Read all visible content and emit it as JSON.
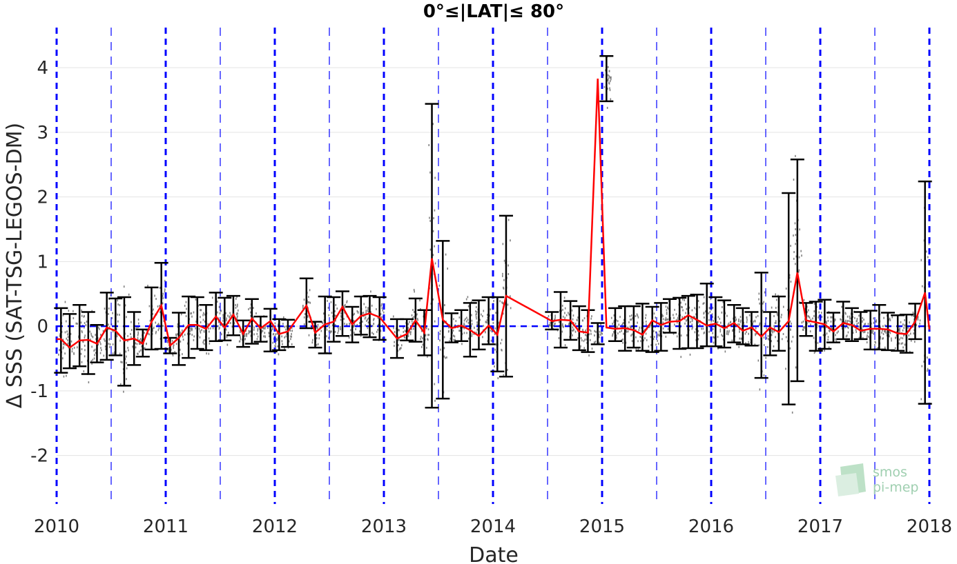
{
  "chart_data": {
    "type": "line",
    "title": "0°≤|LAT|≤ 80°",
    "xlabel": "Date",
    "ylabel": "Δ SSS (SAT-TSG-LEGOS-DM)",
    "xlim": [
      2010,
      2018
    ],
    "ylim": [
      -2.75,
      4.62
    ],
    "x_ticks": [
      "2010",
      "2011",
      "2012",
      "2013",
      "2014",
      "2015",
      "2016",
      "2017",
      "2018"
    ],
    "y_ticks": [
      "-2",
      "-1",
      "0",
      "1",
      "2",
      "3",
      "4"
    ],
    "grid": true,
    "reference_line_y": 0,
    "year_lines": [
      2010,
      2011,
      2012,
      2013,
      2014,
      2015,
      2016,
      2017,
      2018
    ],
    "half_year_lines": [
      2010.5,
      2011.5,
      2012.5,
      2013.5,
      2014.5,
      2015.5,
      2016.5,
      2017.5
    ],
    "series": [
      {
        "color": "#ff0000",
        "x": [
          2010.04,
          2010.12,
          2010.21,
          2010.29,
          2010.37,
          2010.46,
          2010.54,
          2010.62,
          2010.71,
          2010.79,
          2010.87,
          2010.96,
          2011.04,
          2011.12,
          2011.21,
          2011.29,
          2011.37,
          2011.46,
          2011.54,
          2011.62,
          2011.71,
          2011.79,
          2011.87,
          2011.96,
          2012.04,
          2012.12,
          2012.29,
          2012.37,
          2012.46,
          2012.54,
          2012.62,
          2012.71,
          2012.79,
          2012.87,
          2012.96,
          2013.12,
          2013.21,
          2013.29,
          2013.37,
          2013.44,
          2013.54,
          2013.62,
          2013.71,
          2013.79,
          2013.87,
          2013.96,
          2014.04,
          2014.12,
          2014.54,
          2014.62,
          2014.71,
          2014.79,
          2014.87,
          2014.96,
          2015.04,
          2015.12,
          2015.21,
          2015.29,
          2015.37,
          2015.46,
          2015.54,
          2015.62,
          2015.71,
          2015.79,
          2015.87,
          2015.96,
          2016.04,
          2016.12,
          2016.21,
          2016.29,
          2016.37,
          2016.46,
          2016.54,
          2016.62,
          2016.71,
          2016.79,
          2016.87,
          2016.96,
          2017.04,
          2017.12,
          2017.21,
          2017.29,
          2017.37,
          2017.46,
          2017.54,
          2017.62,
          2017.71,
          2017.79,
          2017.87,
          2017.96
        ],
        "y": [
          -0.2,
          -0.33,
          -0.22,
          -0.21,
          -0.27,
          -0.02,
          -0.07,
          -0.22,
          -0.19,
          -0.27,
          0.07,
          0.32,
          -0.3,
          -0.18,
          0.02,
          0.02,
          -0.04,
          0.15,
          -0.02,
          0.18,
          -0.12,
          0.12,
          -0.03,
          0.08,
          -0.12,
          -0.08,
          0.32,
          -0.1,
          0.03,
          0.07,
          0.3,
          0.03,
          0.16,
          0.2,
          0.14,
          -0.19,
          -0.12,
          0.09,
          -0.1,
          1.05,
          0.1,
          -0.03,
          0.01,
          -0.06,
          -0.15,
          0.01,
          -0.13,
          0.47,
          0.08,
          0.1,
          0.09,
          -0.08,
          -0.1,
          3.83,
          -0.02,
          -0.04,
          -0.03,
          -0.06,
          -0.13,
          0.09,
          0.02,
          0.07,
          0.08,
          0.17,
          0.1,
          0.01,
          0.04,
          -0.03,
          0.05,
          -0.07,
          -0.02,
          -0.16,
          -0.02,
          -0.09,
          0.08,
          0.83,
          0.09,
          0.06,
          0.03,
          -0.08,
          0.05,
          0.02,
          -0.07,
          -0.04,
          -0.04,
          -0.05,
          -0.11,
          -0.12,
          0.07,
          0.52
        ]
      }
    ],
    "error_bars": [
      [
        2010.04,
        -0.72,
        0.28
      ],
      [
        2010.12,
        -0.65,
        0.19
      ],
      [
        2010.21,
        -0.62,
        0.33
      ],
      [
        2010.29,
        -0.74,
        0.22
      ],
      [
        2010.37,
        -0.56,
        0.02
      ],
      [
        2010.46,
        -0.52,
        0.52
      ],
      [
        2010.54,
        -0.45,
        0.43
      ],
      [
        2010.62,
        -0.92,
        0.45
      ],
      [
        2010.71,
        -0.6,
        0.22
      ],
      [
        2010.79,
        -0.47,
        -0.05
      ],
      [
        2010.87,
        -0.36,
        0.6
      ],
      [
        2010.96,
        -0.35,
        0.98
      ],
      [
        2011.04,
        -0.42,
        -0.18
      ],
      [
        2011.12,
        -0.6,
        0.21
      ],
      [
        2011.21,
        -0.49,
        0.46
      ],
      [
        2011.29,
        -0.35,
        0.45
      ],
      [
        2011.37,
        -0.37,
        0.33
      ],
      [
        2011.46,
        -0.23,
        0.52
      ],
      [
        2011.54,
        -0.22,
        0.44
      ],
      [
        2011.62,
        -0.14,
        0.47
      ],
      [
        2011.71,
        -0.32,
        0.09
      ],
      [
        2011.79,
        -0.27,
        0.42
      ],
      [
        2011.87,
        -0.24,
        0.15
      ],
      [
        2011.96,
        -0.39,
        0.27
      ],
      [
        2012.04,
        -0.37,
        0.11
      ],
      [
        2012.12,
        -0.32,
        0.1
      ],
      [
        2012.29,
        -0.03,
        0.74
      ],
      [
        2012.37,
        -0.33,
        0.07
      ],
      [
        2012.46,
        -0.42,
        0.46
      ],
      [
        2012.54,
        -0.24,
        0.45
      ],
      [
        2012.62,
        -0.15,
        0.54
      ],
      [
        2012.71,
        -0.25,
        0.3
      ],
      [
        2012.79,
        -0.13,
        0.46
      ],
      [
        2012.87,
        -0.17,
        0.47
      ],
      [
        2012.96,
        -0.21,
        0.45
      ],
      [
        2013.12,
        -0.49,
        0.11
      ],
      [
        2013.21,
        -0.22,
        0.11
      ],
      [
        2013.29,
        -0.24,
        0.43
      ],
      [
        2013.37,
        -0.45,
        0.25
      ],
      [
        2013.44,
        -1.26,
        3.44
      ],
      [
        2013.54,
        -1.12,
        1.32
      ],
      [
        2013.62,
        -0.25,
        0.2
      ],
      [
        2013.71,
        -0.23,
        0.25
      ],
      [
        2013.79,
        -0.47,
        0.36
      ],
      [
        2013.87,
        -0.36,
        0.4
      ],
      [
        2013.96,
        -0.28,
        0.45
      ],
      [
        2014.04,
        -0.7,
        0.45
      ],
      [
        2014.12,
        -0.78,
        1.71
      ],
      [
        2014.54,
        -0.05,
        0.22
      ],
      [
        2014.62,
        -0.33,
        0.53
      ],
      [
        2014.71,
        -0.21,
        0.39
      ],
      [
        2014.79,
        -0.37,
        0.31
      ],
      [
        2014.87,
        -0.4,
        0.25
      ],
      [
        2014.96,
        -0.28,
        0.05
      ],
      [
        2015.04,
        3.48,
        4.18
      ],
      [
        2015.12,
        -0.23,
        0.28
      ],
      [
        2015.21,
        -0.38,
        0.31
      ],
      [
        2015.29,
        -0.33,
        0.31
      ],
      [
        2015.37,
        -0.38,
        0.35
      ],
      [
        2015.46,
        -0.4,
        0.3
      ],
      [
        2015.54,
        -0.38,
        0.36
      ],
      [
        2015.62,
        -0.1,
        0.42
      ],
      [
        2015.71,
        -0.35,
        0.44
      ],
      [
        2015.79,
        -0.34,
        0.47
      ],
      [
        2015.87,
        -0.34,
        0.49
      ],
      [
        2015.96,
        -0.31,
        0.66
      ],
      [
        2016.04,
        -0.31,
        0.45
      ],
      [
        2016.12,
        -0.33,
        0.4
      ],
      [
        2016.21,
        -0.25,
        0.33
      ],
      [
        2016.29,
        -0.28,
        0.28
      ],
      [
        2016.37,
        -0.3,
        0.22
      ],
      [
        2016.46,
        -0.8,
        0.83
      ],
      [
        2016.54,
        -0.45,
        0.22
      ],
      [
        2016.62,
        -0.38,
        0.46
      ],
      [
        2016.71,
        -1.21,
        2.06
      ],
      [
        2016.79,
        -0.85,
        2.58
      ],
      [
        2016.87,
        -0.15,
        0.36
      ],
      [
        2016.96,
        -0.38,
        0.38
      ],
      [
        2017.04,
        -0.35,
        0.41
      ],
      [
        2017.12,
        -0.25,
        0.21
      ],
      [
        2017.21,
        -0.2,
        0.38
      ],
      [
        2017.29,
        -0.23,
        0.28
      ],
      [
        2017.37,
        -0.2,
        0.22
      ],
      [
        2017.46,
        -0.36,
        0.24
      ],
      [
        2017.54,
        -0.36,
        0.33
      ],
      [
        2017.62,
        -0.37,
        0.21
      ],
      [
        2017.71,
        -0.38,
        0.17
      ],
      [
        2017.79,
        -0.41,
        0.18
      ],
      [
        2017.87,
        -0.2,
        0.35
      ],
      [
        2017.96,
        -1.2,
        2.24
      ]
    ],
    "scatter_color": "#808080"
  },
  "logo": {
    "line1": "smos",
    "line2": "pi-mep"
  }
}
